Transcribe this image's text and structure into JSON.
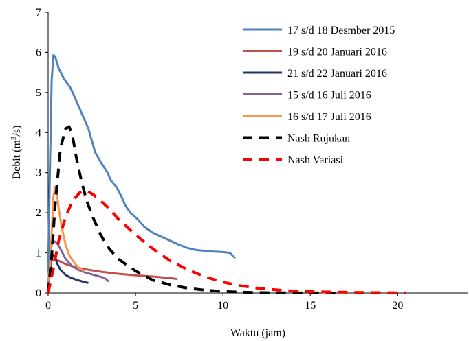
{
  "chart_data": {
    "type": "line",
    "title": "",
    "xlabel": "Waktu (jam)",
    "ylabel_parts": [
      "Debit (m",
      "3",
      "/s)"
    ],
    "xlim": [
      0,
      24
    ],
    "ylim": [
      0,
      7
    ],
    "xticks": [
      0,
      5,
      10,
      15,
      20
    ],
    "yticks": [
      0,
      1,
      2,
      3,
      4,
      5,
      6,
      7
    ],
    "grid": false,
    "legend_position": "top-right",
    "series": [
      {
        "name": "17 s/d 18 Desmber 2015",
        "color": "#4F81BD",
        "dash": "solid",
        "x": [
          0,
          0.1,
          0.2,
          0.3,
          0.4,
          0.6,
          0.9,
          1.3,
          1.6,
          2.0,
          2.3,
          2.5,
          2.7,
          3.1,
          3.4,
          3.6,
          3.9,
          4.2,
          4.4,
          4.7,
          5.1,
          5.5,
          6.0,
          6.5,
          7.0,
          7.5,
          8.0,
          8.5,
          9.0,
          9.5,
          10.0,
          10.4,
          10.7
        ],
        "y": [
          0.6,
          3.0,
          5.3,
          5.93,
          5.9,
          5.6,
          5.35,
          5.1,
          4.8,
          4.4,
          4.1,
          3.8,
          3.5,
          3.2,
          3.0,
          2.8,
          2.65,
          2.4,
          2.2,
          2.0,
          1.85,
          1.65,
          1.5,
          1.4,
          1.3,
          1.2,
          1.12,
          1.07,
          1.05,
          1.03,
          1.02,
          1.0,
          0.87
        ]
      },
      {
        "name": "19 s/d 20 Januari 2016",
        "color": "#C0504D",
        "dash": "solid",
        "x": [
          0,
          0.1,
          0.2,
          0.4,
          0.7,
          1.0,
          1.5,
          2.0,
          3.0,
          4.0,
          5.0,
          6.0,
          7.0,
          7.4
        ],
        "y": [
          0.15,
          0.6,
          0.82,
          0.85,
          0.78,
          0.72,
          0.65,
          0.6,
          0.53,
          0.48,
          0.44,
          0.41,
          0.37,
          0.35
        ]
      },
      {
        "name": "21 s/d 22 Januari 2016",
        "color": "#1F3864",
        "dash": "solid",
        "x": [
          0,
          0.1,
          0.2,
          0.3,
          0.4,
          0.5,
          0.7,
          1.0,
          1.3,
          1.7,
          2.0,
          2.3
        ],
        "y": [
          0.1,
          0.5,
          0.85,
          0.95,
          0.9,
          0.75,
          0.58,
          0.45,
          0.38,
          0.32,
          0.28,
          0.25
        ]
      },
      {
        "name": "15 s/d 16 Juli 2016",
        "color": "#8064A2",
        "dash": "solid",
        "x": [
          0,
          0.1,
          0.2,
          0.3,
          0.5,
          0.7,
          1.0,
          1.3,
          1.7,
          2.2,
          2.8,
          3.2,
          3.5
        ],
        "y": [
          0.2,
          0.8,
          1.2,
          1.3,
          1.25,
          1.1,
          0.85,
          0.7,
          0.58,
          0.5,
          0.43,
          0.38,
          0.28
        ]
      },
      {
        "name": "16 s/d 17 Juli 2016",
        "color": "#F79646",
        "dash": "solid",
        "x": [
          0,
          0.1,
          0.2,
          0.3,
          0.4,
          0.5,
          0.6,
          0.8,
          1.0,
          1.2,
          1.5,
          1.8,
          2.1
        ],
        "y": [
          0.3,
          0.6,
          1.5,
          2.4,
          2.65,
          2.5,
          2.1,
          1.6,
          1.2,
          0.95,
          0.75,
          0.6,
          0.55
        ]
      },
      {
        "name": "Nash Rujukan",
        "color": "#000000",
        "dash": "dashed",
        "x": [
          0,
          0.2,
          0.4,
          0.7,
          1.0,
          1.2,
          1.4,
          1.6,
          1.9,
          2.2,
          2.6,
          3.0,
          3.5,
          4.0,
          5.0,
          6.0,
          7.0,
          8.0,
          9.0,
          10.0,
          11.0,
          12.0,
          13.0,
          14.0,
          15.0,
          16.0,
          16.5
        ],
        "y": [
          0.0,
          0.9,
          2.2,
          3.6,
          4.1,
          4.15,
          3.9,
          3.4,
          2.8,
          2.3,
          1.85,
          1.45,
          1.1,
          0.85,
          0.55,
          0.32,
          0.2,
          0.12,
          0.07,
          0.04,
          0.02,
          0.01,
          0.005,
          0.003,
          0.002,
          0.001,
          0.0
        ]
      },
      {
        "name": "Nash Variasi",
        "color": "#FF0000",
        "dash": "dashed",
        "x": [
          0,
          0.3,
          0.6,
          1.0,
          1.4,
          1.8,
          2.2,
          2.6,
          3.0,
          3.5,
          4.0,
          5.0,
          6.0,
          7.0,
          8.0,
          9.0,
          10.0,
          11.0,
          12.0,
          13.0,
          14.0,
          15.0,
          16.0,
          17.0,
          18.0,
          19.0,
          20.0,
          20.5
        ],
        "y": [
          0.0,
          0.6,
          1.3,
          1.9,
          2.3,
          2.5,
          2.55,
          2.45,
          2.3,
          2.1,
          1.85,
          1.45,
          1.1,
          0.8,
          0.58,
          0.4,
          0.27,
          0.18,
          0.12,
          0.08,
          0.05,
          0.035,
          0.025,
          0.018,
          0.012,
          0.008,
          0.005,
          0.004
        ]
      }
    ]
  }
}
